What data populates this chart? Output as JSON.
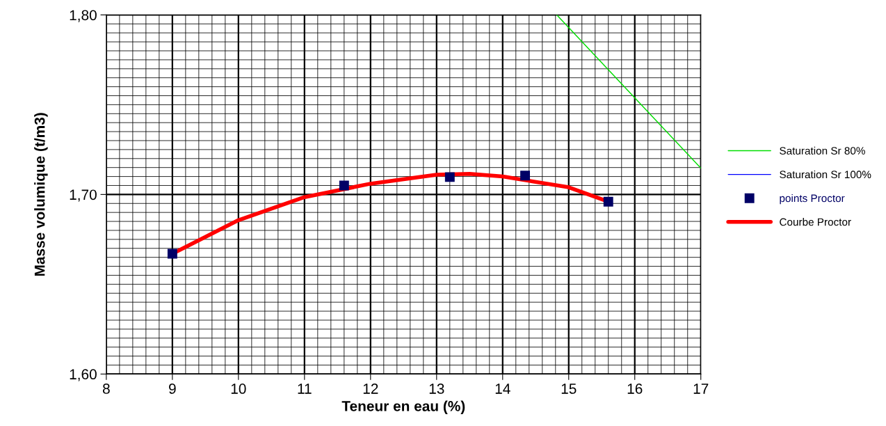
{
  "chart_data": {
    "type": "line",
    "xlabel": "Teneur en eau (%)",
    "ylabel": "Masse volumique (t/m3)",
    "xlim": [
      8,
      17
    ],
    "xticks": [
      8,
      9,
      10,
      11,
      12,
      13,
      14,
      15,
      16,
      17
    ],
    "ylim": [
      1.6,
      1.8
    ],
    "yticks": [
      {
        "value": 1.6,
        "label": "1,60"
      },
      {
        "value": 1.7,
        "label": "1,70"
      },
      {
        "value": 1.8,
        "label": "1,80"
      }
    ],
    "grid": true,
    "legend": "right",
    "series": [
      {
        "name": "Saturation Sr 80%",
        "color": "#00dd00",
        "x": [
          14.82,
          17
        ],
        "values": [
          1.8,
          1.7147
        ],
        "marker": "none"
      },
      {
        "name": "Saturation Sr 100%",
        "color": "#0000ff",
        "marker": "none"
      },
      {
        "name": "points Proctor",
        "type": "scatter",
        "color": "#000066",
        "x": [
          9,
          11.6,
          13.2,
          14.34,
          15.6
        ],
        "values": [
          1.667,
          1.705,
          1.7097,
          1.7105,
          1.696
        ],
        "marker": "square"
      },
      {
        "name": "Courbe Proctor",
        "color": "#ff0000",
        "x": [
          9,
          10,
          11,
          12,
          13,
          13.5,
          14,
          15,
          15.6
        ],
        "values": [
          1.667,
          1.6857,
          1.6985,
          1.706,
          1.711,
          1.7115,
          1.71,
          1.704,
          1.696
        ],
        "marker": "none"
      }
    ]
  }
}
